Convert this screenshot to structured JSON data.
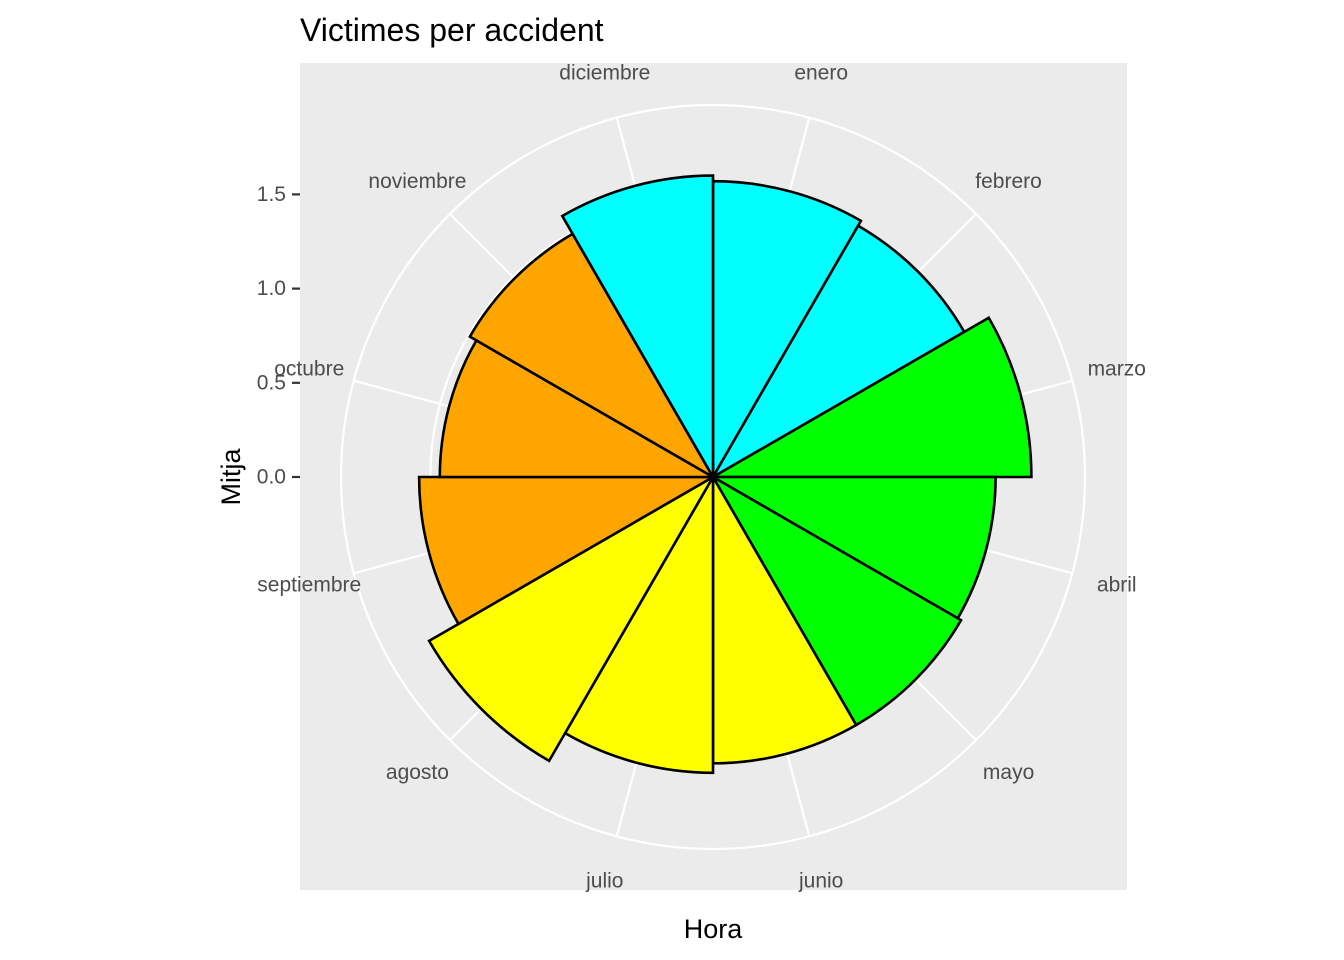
{
  "chart_data": {
    "type": "polar-bar",
    "title": "Victimes per accident",
    "xlabel": "Hora",
    "ylabel": "Mitja",
    "yticks": [
      "0.0",
      "0.5",
      "1.0",
      "1.5"
    ],
    "ytick_values": [
      0.0,
      0.5,
      1.0,
      1.5
    ],
    "categories": [
      "enero",
      "febrero",
      "marzo",
      "abril",
      "mayo",
      "junio",
      "julio",
      "agosto",
      "septiembre",
      "octubre",
      "noviembre",
      "diciembre"
    ],
    "values": [
      1.57,
      1.54,
      1.69,
      1.5,
      1.52,
      1.52,
      1.57,
      1.74,
      1.56,
      1.45,
      1.49,
      1.6
    ],
    "season_colors": [
      "#00FFFF",
      "#00FFFF",
      "#00FF00",
      "#00FF00",
      "#00FF00",
      "#FFFF00",
      "#FFFF00",
      "#FFFF00",
      "#FFA500",
      "#FFA500",
      "#FFA500",
      "#00FFFF"
    ],
    "panel_background": "#EBEBEB",
    "grid_color": "#FFFFFF",
    "outline_color": "#000000",
    "grid": true,
    "legend": "none"
  }
}
